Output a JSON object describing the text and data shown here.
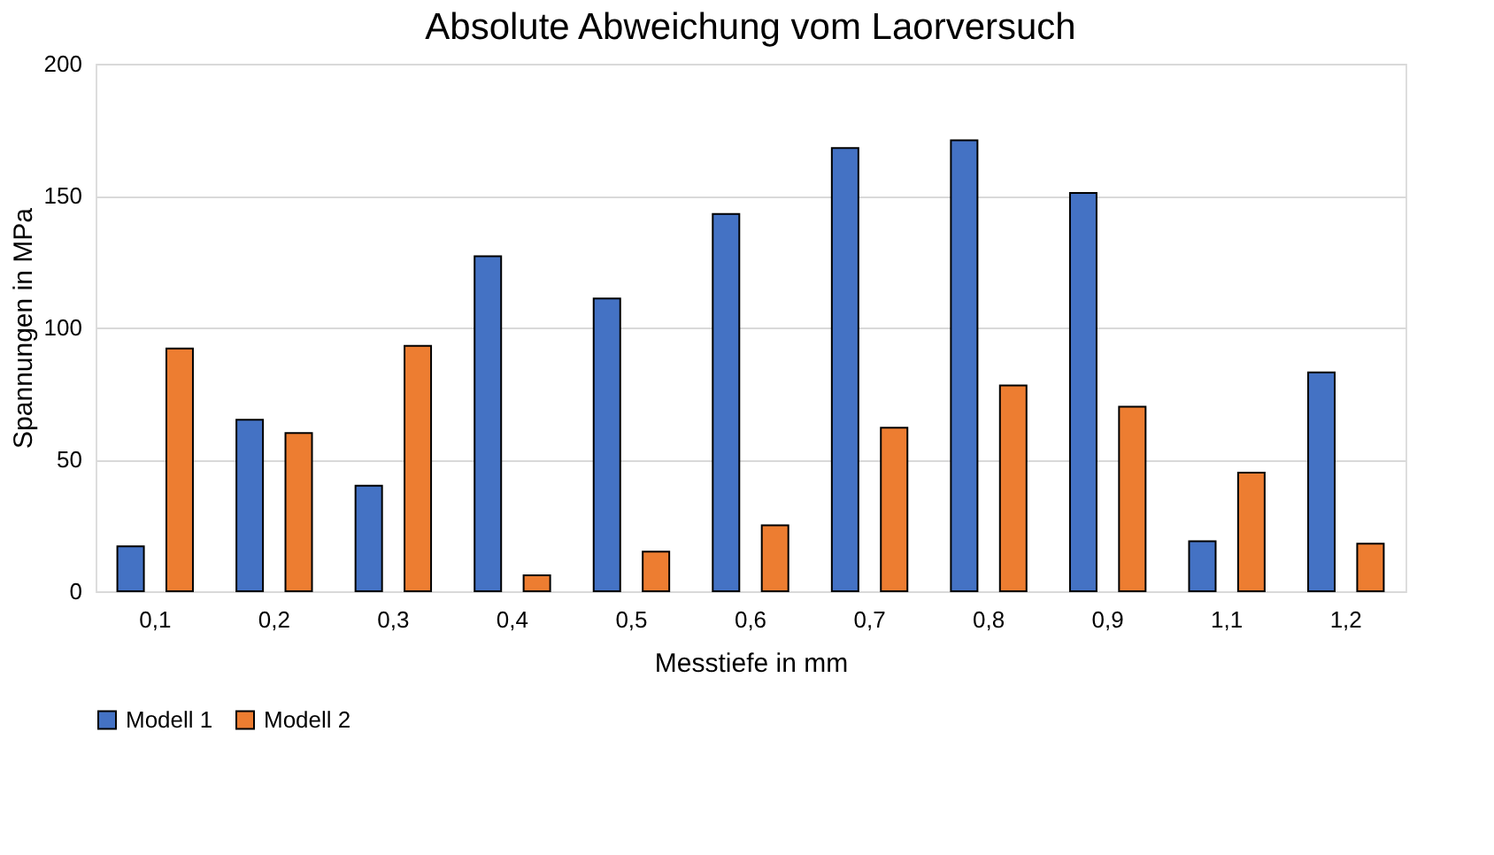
{
  "chart_data": {
    "type": "bar",
    "title": "Absolute Abweichung vom Laorversuch",
    "xlabel": "Messtiefe in mm",
    "ylabel": "Spannungen in MPa",
    "categories": [
      "0,1",
      "0,2",
      "0,3",
      "0,4",
      "0,5",
      "0,6",
      "0,7",
      "0,8",
      "0,9",
      "1,1",
      "1,2"
    ],
    "series": [
      {
        "name": "Modell 1",
        "color": "#4472c4",
        "values": [
          17,
          65,
          40,
          127,
          111,
          143,
          168,
          171,
          151,
          19,
          83
        ]
      },
      {
        "name": "Modell 2",
        "color": "#ed7d31",
        "values": [
          92,
          60,
          93,
          6,
          15,
          25,
          62,
          78,
          70,
          45,
          18
        ]
      }
    ],
    "ylim": [
      0,
      200
    ],
    "yticks": [
      0,
      50,
      100,
      150,
      200
    ],
    "grid": "y",
    "legend": "bottom"
  }
}
